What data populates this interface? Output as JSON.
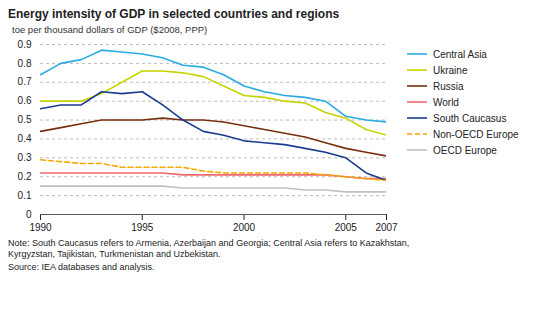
{
  "chart_data": {
    "type": "line",
    "title": "Energy intensity of GDP in selected countries and regions",
    "ylabel": "toe per thousand dollars of GDP ($2008, PPP)",
    "annotations": [
      "Note: South Caucasus refers to Armenia, Azerbaijan and Georgia; Central Asia refers to Kazakhstan,\nKyrgyzstan, Tajikistan, Turkmenistan and Uzbekistan.",
      "Source: IEA databases and analysis."
    ],
    "x": [
      1990,
      1991,
      1992,
      1993,
      1994,
      1995,
      1996,
      1997,
      1998,
      1999,
      2000,
      2001,
      2002,
      2003,
      2004,
      2005,
      2006,
      2007
    ],
    "series": [
      {
        "name": "Central Asia",
        "color": "#29abe2",
        "line_style": "solid",
        "values": [
          0.74,
          0.8,
          0.82,
          0.87,
          0.86,
          0.85,
          0.83,
          0.79,
          0.78,
          0.74,
          0.68,
          0.65,
          0.63,
          0.62,
          0.6,
          0.52,
          0.5,
          0.49
        ]
      },
      {
        "name": "Ukraine",
        "color": "#c8d400",
        "line_style": "solid",
        "values": [
          0.6,
          0.6,
          0.6,
          0.64,
          0.7,
          0.76,
          0.76,
          0.75,
          0.73,
          0.68,
          0.63,
          0.62,
          0.6,
          0.59,
          0.54,
          0.51,
          0.45,
          0.42
        ]
      },
      {
        "name": "Russia",
        "color": "#7b2e0e",
        "line_style": "solid",
        "values": [
          0.44,
          0.46,
          0.48,
          0.5,
          0.5,
          0.5,
          0.51,
          0.5,
          0.5,
          0.49,
          0.47,
          0.45,
          0.43,
          0.41,
          0.38,
          0.35,
          0.33,
          0.31
        ]
      },
      {
        "name": "World",
        "color": "#f0696e",
        "line_style": "solid",
        "values": [
          0.22,
          0.22,
          0.22,
          0.22,
          0.22,
          0.22,
          0.22,
          0.21,
          0.21,
          0.21,
          0.21,
          0.21,
          0.21,
          0.21,
          0.21,
          0.2,
          0.19,
          0.19
        ]
      },
      {
        "name": "South Caucasus",
        "color": "#1a3d8f",
        "line_style": "solid",
        "values": [
          0.56,
          0.58,
          0.58,
          0.65,
          0.64,
          0.65,
          0.58,
          0.5,
          0.44,
          0.42,
          0.39,
          0.38,
          0.37,
          0.35,
          0.33,
          0.3,
          0.22,
          0.18
        ]
      },
      {
        "name": "Non-OECD Europe",
        "color": "#f5a800",
        "line_style": "dashed",
        "values": [
          0.29,
          0.28,
          0.27,
          0.27,
          0.25,
          0.25,
          0.25,
          0.25,
          0.23,
          0.22,
          0.22,
          0.22,
          0.22,
          0.22,
          0.21,
          0.2,
          0.19,
          0.18
        ]
      },
      {
        "name": "OECD Europe",
        "color": "#c0c0c0",
        "line_style": "solid",
        "values": [
          0.15,
          0.15,
          0.15,
          0.15,
          0.15,
          0.15,
          0.15,
          0.14,
          0.14,
          0.14,
          0.14,
          0.14,
          0.14,
          0.13,
          0.13,
          0.12,
          0.12,
          0.12
        ]
      }
    ],
    "xlim": [
      1990,
      2007
    ],
    "xticks": [
      1990,
      1995,
      2000,
      2005,
      2007
    ],
    "ylim": [
      0,
      0.9
    ],
    "yticks": [
      0,
      0.1,
      0.2,
      0.3,
      0.4,
      0.5,
      0.6,
      0.7,
      0.8,
      0.9
    ],
    "grid": true,
    "legend": "right"
  }
}
